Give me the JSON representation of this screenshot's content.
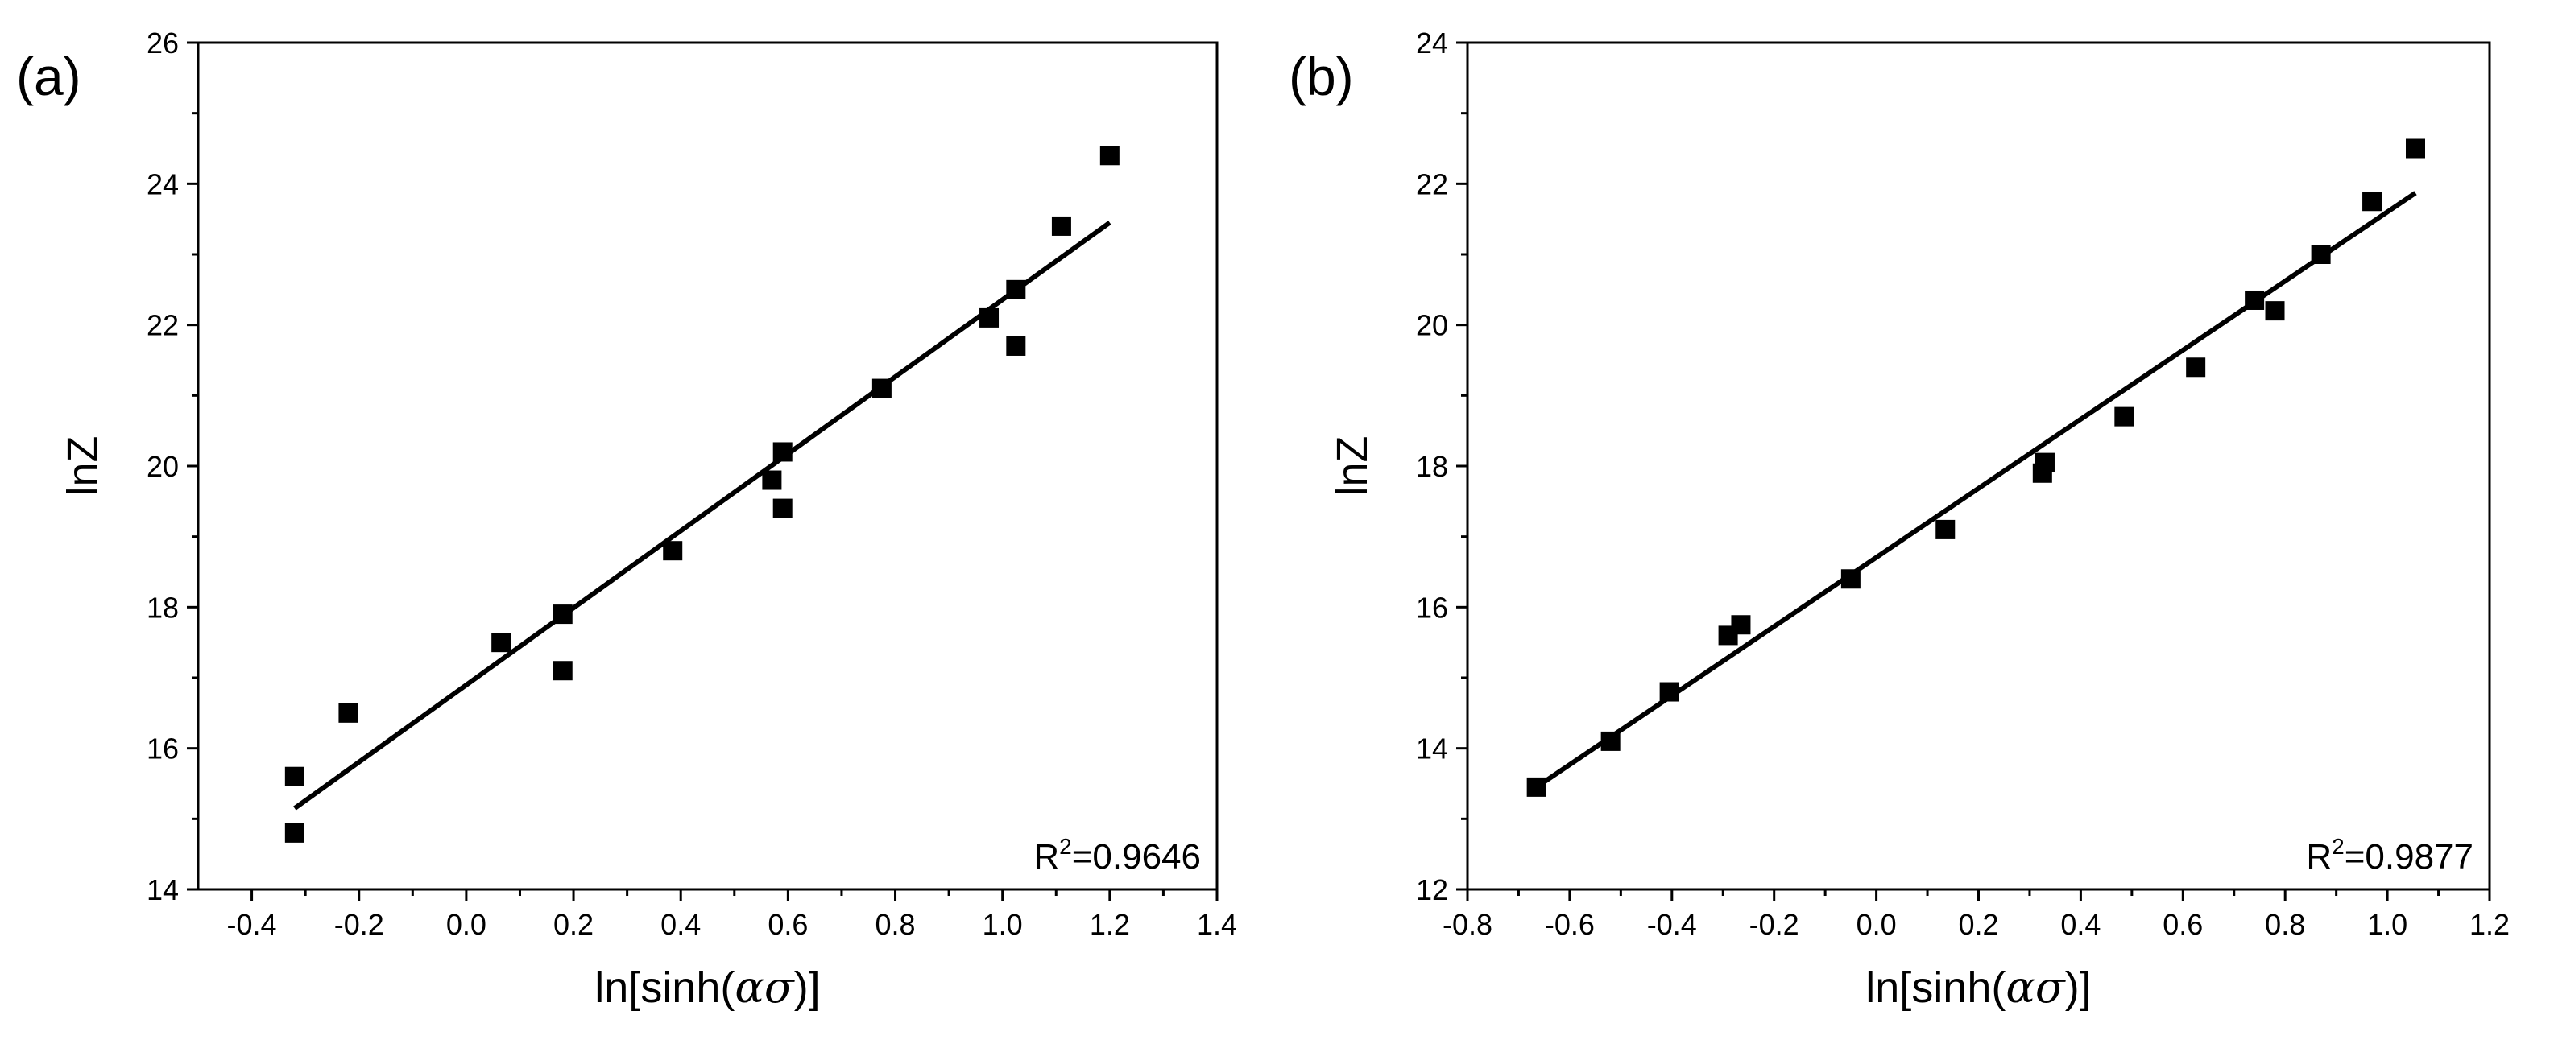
{
  "chart_data": [
    {
      "type": "scatter",
      "panel_label": "(a)",
      "xlabel_prefix": "ln[sinh(",
      "xlabel_alpha": "α",
      "xlabel_sigma": "σ",
      "xlabel_suffix": ")]",
      "ylabel": "lnZ",
      "xlim": [
        -0.5,
        1.4
      ],
      "ylim": [
        14,
        26
      ],
      "xticks": [
        -0.4,
        -0.2,
        0.0,
        0.2,
        0.4,
        0.6,
        0.8,
        1.0,
        1.2,
        1.4
      ],
      "xtick_labels": [
        "-0.4",
        "-0.2",
        "0.0",
        "0.2",
        "0.4",
        "0.6",
        "0.8",
        "1.0",
        "1.2",
        "1.4"
      ],
      "yticks": [
        14,
        16,
        18,
        20,
        22,
        24,
        26
      ],
      "ytick_labels": [
        "14",
        "16",
        "18",
        "20",
        "22",
        "24",
        "26"
      ],
      "points": [
        [
          -0.32,
          15.6
        ],
        [
          -0.32,
          14.8
        ],
        [
          -0.22,
          16.5
        ],
        [
          0.065,
          17.5
        ],
        [
          0.18,
          17.9
        ],
        [
          0.18,
          17.1
        ],
        [
          0.385,
          18.8
        ],
        [
          0.57,
          19.8
        ],
        [
          0.59,
          20.2
        ],
        [
          0.59,
          19.4
        ],
        [
          0.775,
          21.1
        ],
        [
          0.975,
          22.1
        ],
        [
          1.025,
          22.5
        ],
        [
          1.025,
          21.7
        ],
        [
          1.11,
          23.4
        ],
        [
          1.2,
          24.4
        ]
      ],
      "fit_line": [
        [
          -0.32,
          15.15
        ],
        [
          1.2,
          23.45
        ]
      ],
      "r2_prefix": "R",
      "r2_exponent": "2",
      "r2_value": "=0.9646",
      "grid": false
    },
    {
      "type": "scatter",
      "panel_label": "(b)",
      "xlabel_prefix": "ln[sinh(",
      "xlabel_alpha": "α",
      "xlabel_sigma": "σ",
      "xlabel_suffix": ")]",
      "ylabel": "lnZ",
      "xlim": [
        -0.8,
        1.2
      ],
      "ylim": [
        12,
        24
      ],
      "xticks": [
        -0.8,
        -0.6,
        -0.4,
        -0.2,
        0.0,
        0.2,
        0.4,
        0.6,
        0.8,
        1.0,
        1.2
      ],
      "xtick_labels": [
        "-0.8",
        "-0.6",
        "-0.4",
        "-0.2",
        "0.0",
        "0.2",
        "0.4",
        "0.6",
        "0.8",
        "1.0",
        "1.2"
      ],
      "yticks": [
        12,
        14,
        16,
        18,
        20,
        22,
        24
      ],
      "ytick_labels": [
        "12",
        "14",
        "16",
        "18",
        "20",
        "22",
        "24"
      ],
      "points": [
        [
          -0.665,
          13.45
        ],
        [
          -0.52,
          14.1
        ],
        [
          -0.405,
          14.8
        ],
        [
          -0.29,
          15.6
        ],
        [
          -0.265,
          15.75
        ],
        [
          -0.05,
          16.4
        ],
        [
          0.135,
          17.1
        ],
        [
          0.325,
          17.9
        ],
        [
          0.33,
          18.05
        ],
        [
          0.485,
          18.7
        ],
        [
          0.625,
          19.4
        ],
        [
          0.74,
          20.35
        ],
        [
          0.78,
          20.2
        ],
        [
          0.87,
          21.0
        ],
        [
          0.97,
          21.75
        ],
        [
          1.055,
          22.5
        ]
      ],
      "fit_line": [
        [
          -0.665,
          13.45
        ],
        [
          1.055,
          21.87
        ]
      ],
      "r2_prefix": "R",
      "r2_exponent": "2",
      "r2_value": "=0.9877",
      "grid": false
    }
  ]
}
